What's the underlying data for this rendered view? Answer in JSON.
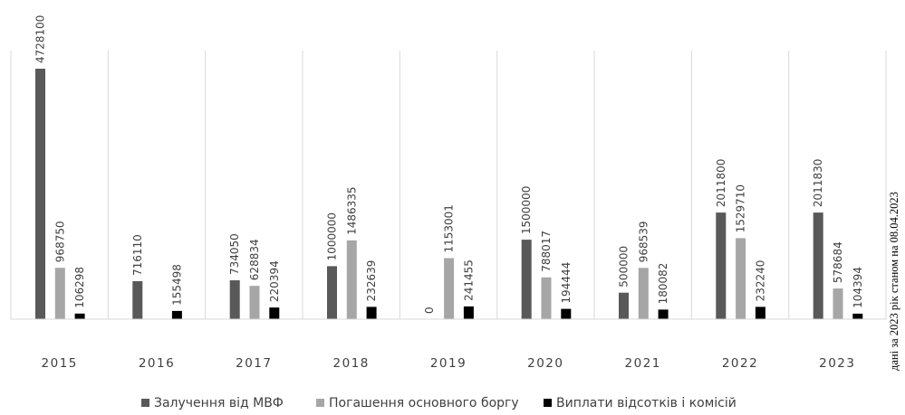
{
  "chart_data": {
    "type": "bar",
    "categories": [
      "2015",
      "2016",
      "2017",
      "2018",
      "2019",
      "2020",
      "2021",
      "2022",
      "2023"
    ],
    "series": [
      {
        "name": "Залучення від МВФ",
        "color": "#595959",
        "values": [
          4728100,
          716110,
          734050,
          1000000,
          0,
          1500000,
          500000,
          2011800,
          2011830
        ]
      },
      {
        "name": "Погашення основного боргу",
        "color": "#a6a6a6",
        "values": [
          968750,
          null,
          628834,
          1486335,
          1153001,
          788017,
          968539,
          1529710,
          578684
        ]
      },
      {
        "name": "Виплати відсотків і комісій",
        "color": "#000000",
        "values": [
          106298,
          155498,
          220394,
          232639,
          241455,
          194444,
          180082,
          232240,
          104394
        ]
      }
    ],
    "value_labels": [
      [
        "4728100",
        "716110",
        "734050",
        "1000000",
        "0",
        "1500000",
        "500000",
        "2011800",
        "2011830"
      ],
      [
        "968750",
        "",
        "628834",
        "1486335",
        "1153001",
        "788017",
        "968539",
        "1529710",
        "578684"
      ],
      [
        "106298",
        "155498",
        "220394",
        "232639",
        "241455",
        "194444",
        "180082",
        "232240",
        "104394"
      ]
    ],
    "note": "дані за 2023 рік станом  на 08.04.2023",
    "ylim": [
      0,
      4728100
    ],
    "grid": "vertical-separators",
    "legend_position": "bottom"
  }
}
